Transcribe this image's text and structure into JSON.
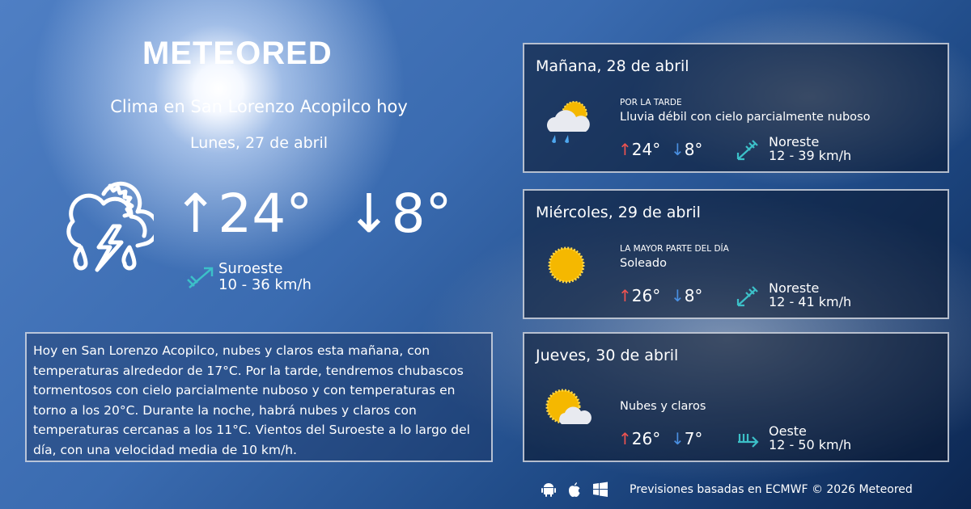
{
  "brand": "METEORED",
  "title": "Clima en San Lorenzo Acopilco hoy",
  "today": {
    "date": "Lunes, 27 de abril",
    "max": "↑24°",
    "min": "↓8°",
    "wind_dir": "Suroeste",
    "wind_speed": "10 - 36 km/h",
    "icon": "thunderstorm-rain-sun-icon"
  },
  "description": "Hoy en San Lorenzo Acopilco, nubes y claros esta mañana, con temperaturas alrededor de 17°C. Por la tarde, tendremos chubascos tormentosos con cielo parcialmente nuboso y con temperaturas en torno a los 20°C. Durante la noche, habrá nubes y claros  con temperaturas cercanas a los 11°C. Vientos del Suroeste a lo largo del día, con una velocidad media de 10 km/h.",
  "forecast": [
    {
      "day": "Mañana, 28 de abril",
      "period": "POR LA TARDE",
      "condition": "Lluvia débil con cielo parcialmente nuboso",
      "max": "24°",
      "min": "8°",
      "wind_dir": "Noreste",
      "wind_speed": "12 - 39 km/h",
      "icon": "light-rain-partly-cloudy-icon"
    },
    {
      "day": "Miércoles, 29 de abril",
      "period": "LA MAYOR PARTE DEL DÍA",
      "condition": "Soleado",
      "max": "26°",
      "min": "8°",
      "wind_dir": "Noreste",
      "wind_speed": "12 - 41 km/h",
      "icon": "sunny-icon"
    },
    {
      "day": "Jueves, 30 de abril",
      "period": "",
      "condition": "Nubes y claros",
      "max": "26°",
      "min": "7°",
      "wind_dir": "Oeste",
      "wind_speed": "12 - 50 km/h",
      "icon": "partly-cloudy-icon"
    }
  ],
  "footer": {
    "text": "Previsiones basadas en ECMWF © 2026 Meteored",
    "platforms": [
      "android-icon",
      "apple-icon",
      "windows-icon"
    ]
  },
  "colors": {
    "max": "#ef5350",
    "min": "#4a90e2",
    "wind": "#3cc0c8"
  }
}
